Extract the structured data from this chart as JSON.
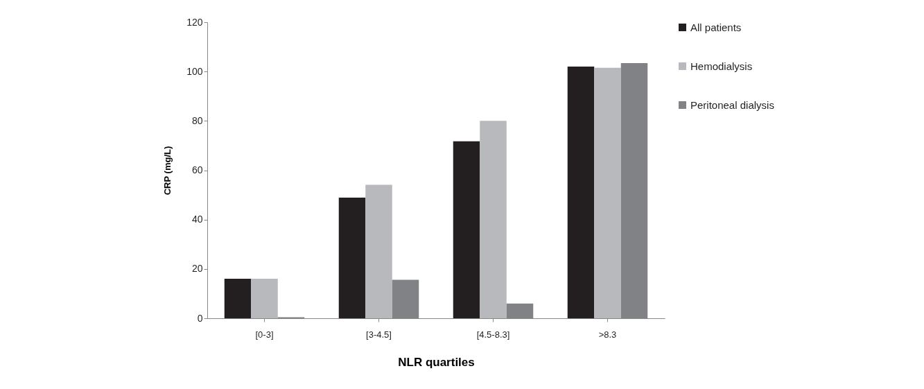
{
  "chart_data": {
    "type": "bar",
    "xlabel": "NLR quartiles",
    "ylabel": "CRP (mg/L)",
    "categories": [
      "[0-3]",
      "[3-4.5]",
      "[4.5-8.3]",
      ">8.3"
    ],
    "series": [
      {
        "name": "All patients",
        "color": "#231f20",
        "values": [
          16,
          48.9,
          71.7,
          102
        ]
      },
      {
        "name": "Hemodialysis",
        "color": "#b8b9bc",
        "values": [
          16,
          54.1,
          80,
          101.5
        ]
      },
      {
        "name": "Peritoneal dialysis",
        "color": "#808285",
        "values": [
          0.4,
          15.6,
          6,
          103.4
        ]
      }
    ],
    "ylim": [
      0,
      120
    ],
    "yticks": [
      0,
      20,
      40,
      60,
      80,
      100,
      120
    ],
    "grid": false,
    "legend": "right"
  }
}
